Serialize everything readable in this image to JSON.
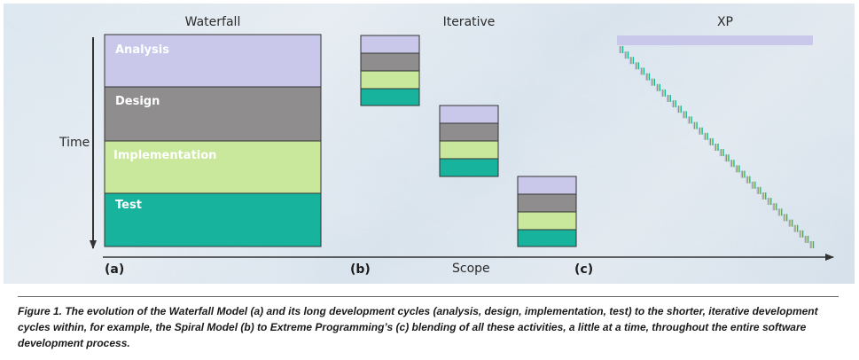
{
  "colors": {
    "analysis": "#c9c8ea",
    "design": "#8f8d8e",
    "implementation": "#c9e89b",
    "test": "#18b39d",
    "xp_bar": "#c9c8ea",
    "axis": "#333333"
  },
  "columns": {
    "waterfall_title": "Waterfall",
    "iterative_title": "Iterative",
    "xp_title": "XP"
  },
  "axes": {
    "time_label": "Time",
    "scope_label": "Scope"
  },
  "phases": {
    "analysis": "Analysis",
    "design": "Design",
    "implementation": "Implementation",
    "test": "Test"
  },
  "panel_labels": {
    "a": "(a)",
    "b": "(b)",
    "c": "(c)"
  },
  "caption": "Figure 1. The evolution of the Waterfall Model (a) and its long development cycles (analysis, design, implementation, test) to the shorter, iterative development cycles within, for example, the Spiral Model (b) to Extreme Programming’s (c) blending of all these activities, a little at a time, throughout the entire software development process."
}
